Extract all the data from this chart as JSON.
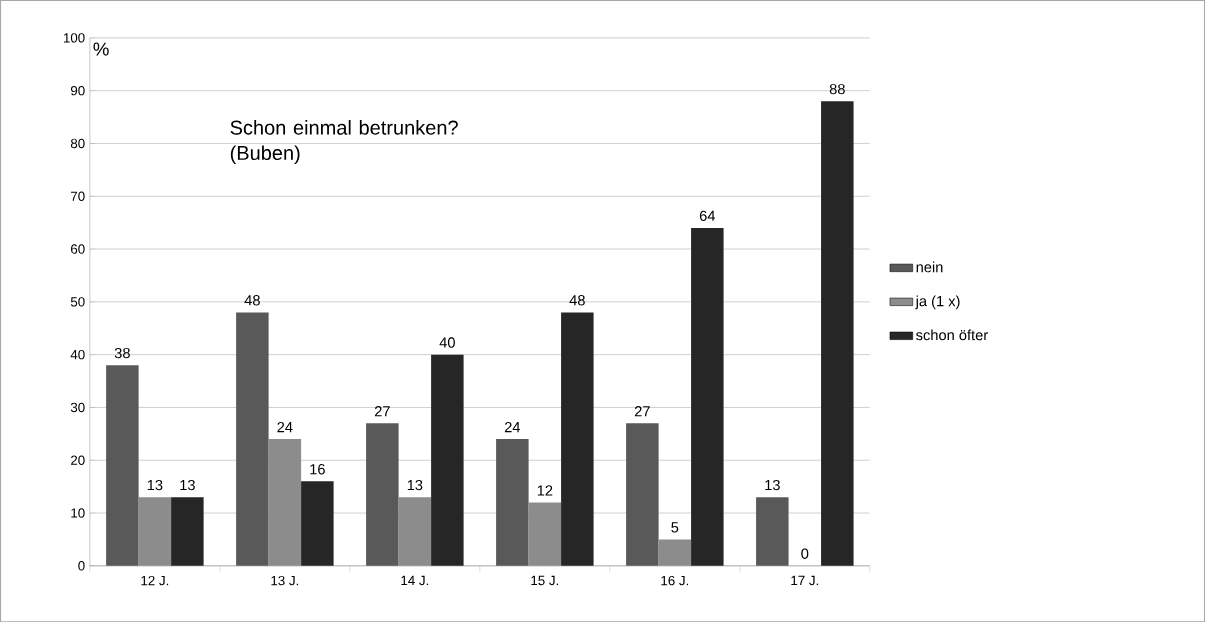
{
  "chart_data": {
    "type": "bar",
    "title": "Schon einmal betrunken?",
    "subtitle": "(Buben)",
    "ylabel": "%",
    "categories": [
      "12 J.",
      "13 J.",
      "14 J.",
      "15 J.",
      "16 J.",
      "17 J."
    ],
    "series": [
      {
        "name": "nein",
        "color": "#595959",
        "values": [
          38,
          48,
          27,
          24,
          27,
          13
        ]
      },
      {
        "name": "ja (1 x)",
        "color": "#8c8c8c",
        "values": [
          13,
          24,
          13,
          12,
          5,
          0
        ]
      },
      {
        "name": "schon öfter",
        "color": "#262626",
        "values": [
          13,
          16,
          40,
          48,
          64,
          88
        ]
      }
    ],
    "ylim": [
      0,
      100
    ],
    "yticks": [
      0,
      10,
      20,
      30,
      40,
      50,
      60,
      70,
      80,
      90,
      100
    ],
    "grid": "y",
    "legend": "right",
    "data_labels": true
  }
}
